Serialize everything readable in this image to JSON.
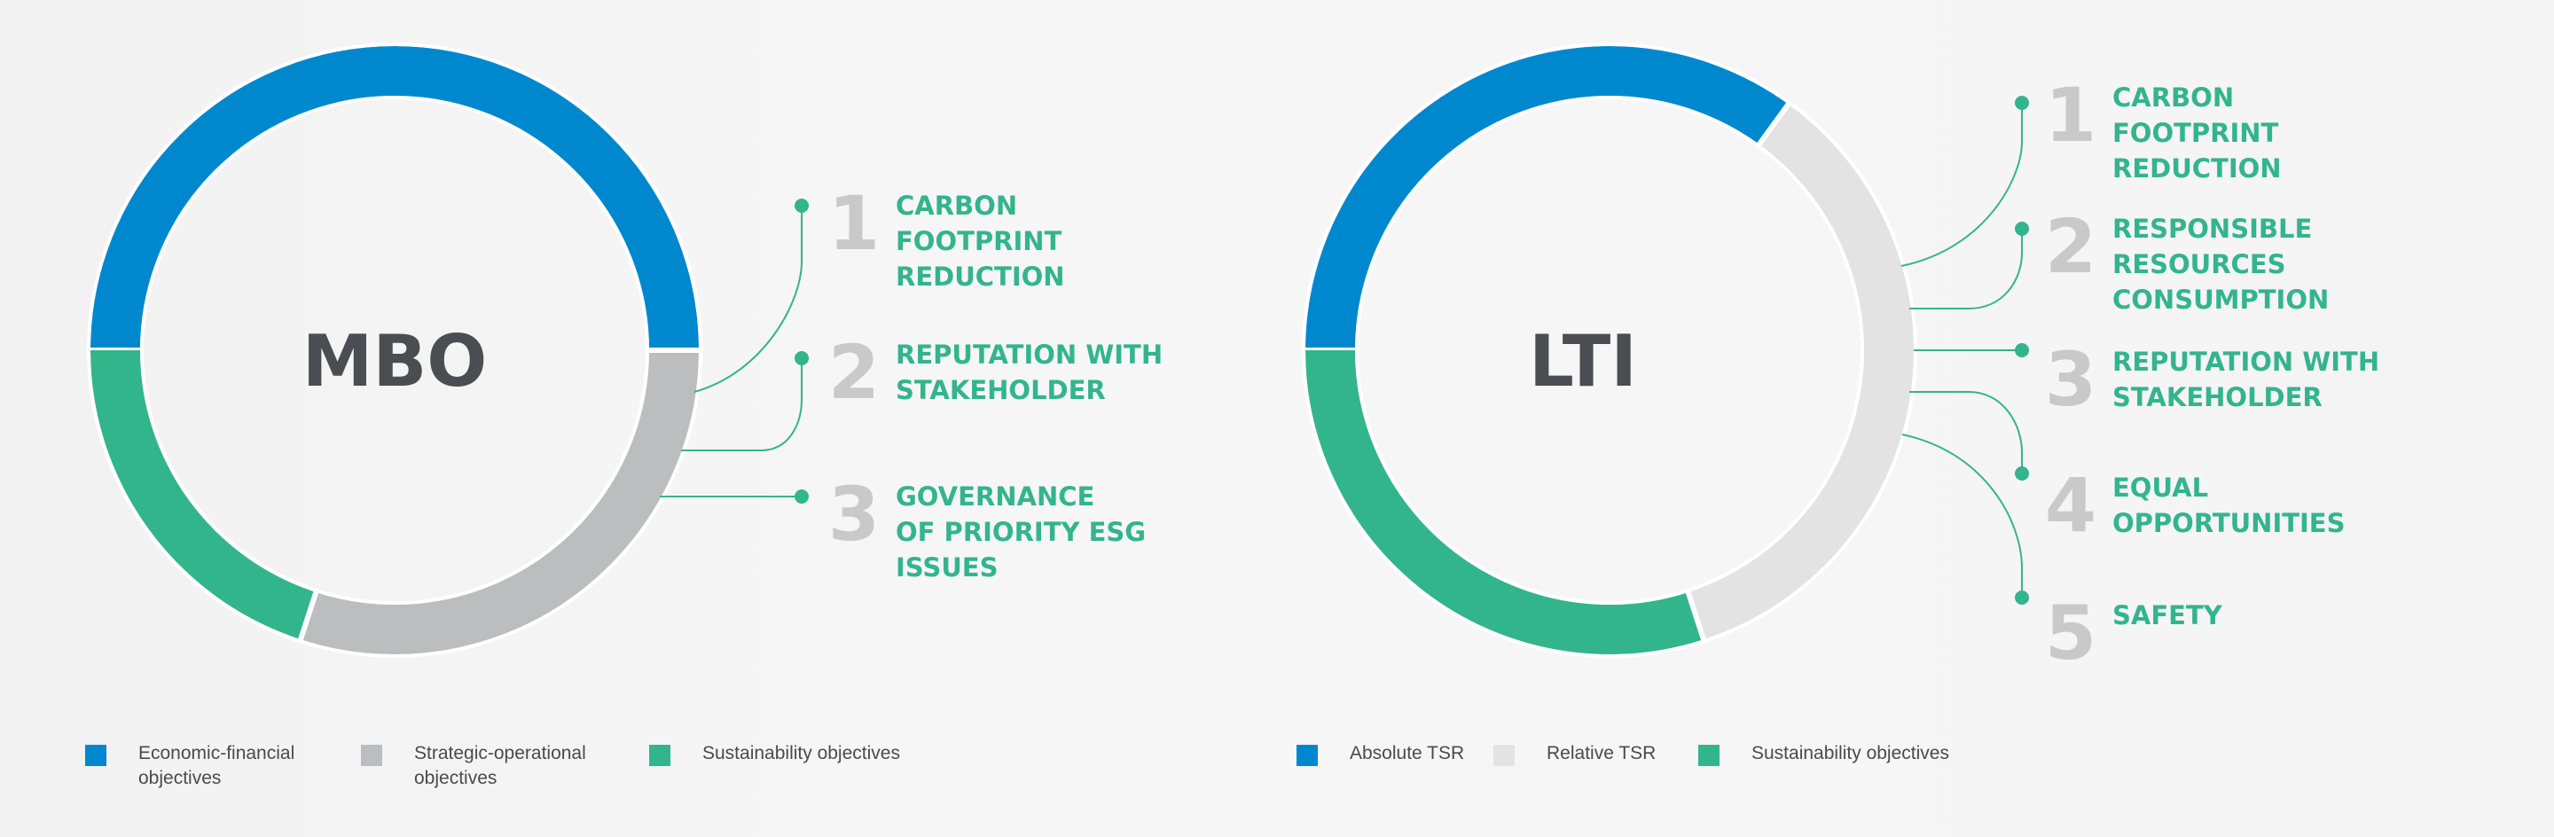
{
  "colors": {
    "blue": "#0088cf",
    "grey": "#bcbdbf",
    "light_grey": "#e3e3e3",
    "green": "#33b58b",
    "number_grey": "#c9c9c9",
    "title": "#4a4d52"
  },
  "mbo": {
    "title": "MBO",
    "segments": [
      {
        "legend": "Economic-financial\nobjectives",
        "share": 0.5,
        "color": "#0088cf"
      },
      {
        "legend": "Strategic-operational\nobjectives",
        "share": 0.3,
        "color": "#bcbdbf"
      },
      {
        "legend": "Sustainability objectives",
        "share": 0.2,
        "color": "#33b58b"
      }
    ],
    "items": [
      {
        "num": "1",
        "text": "CARBON\nFOOTPRINT\nREDUCTION"
      },
      {
        "num": "2",
        "text": "REPUTATION WITH\nSTAKEHOLDER"
      },
      {
        "num": "3",
        "text": "GOVERNANCE\nOF PRIORITY ESG\nISSUES"
      }
    ]
  },
  "lti": {
    "title": "LTI",
    "segments": [
      {
        "legend": "Absolute TSR",
        "share": 0.35,
        "color": "#0088cf"
      },
      {
        "legend": "Relative TSR",
        "share": 0.35,
        "color": "#e3e3e3"
      },
      {
        "legend": "Sustainability objectives",
        "share": 0.3,
        "color": "#33b58b"
      }
    ],
    "items": [
      {
        "num": "1",
        "text": "CARBON\nFOOTPRINT\nREDUCTION"
      },
      {
        "num": "2",
        "text": "RESPONSIBLE\nRESOURCES\nCONSUMPTION"
      },
      {
        "num": "3",
        "text": "REPUTATION WITH\nSTAKEHOLDER"
      },
      {
        "num": "4",
        "text": "EQUAL\nOPPORTUNITIES"
      },
      {
        "num": "5",
        "text": "SAFETY"
      }
    ]
  }
}
